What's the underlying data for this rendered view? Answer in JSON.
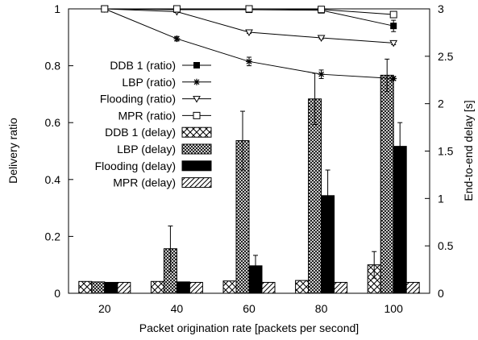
{
  "chart_data": {
    "type": "bar",
    "title": "",
    "xlabel": "Packet origination rate [packets per second]",
    "ylabel_left": "Delivery ratio",
    "ylabel_right": "End-to-end delay [s]",
    "categories": [
      "20",
      "40",
      "60",
      "80",
      "100"
    ],
    "ylim_left": [
      0,
      1
    ],
    "ylim_right": [
      0,
      3
    ],
    "yticks_left": [
      "0",
      "0.2",
      "0.4",
      "0.6",
      "0.8",
      "1"
    ],
    "yticks_right": [
      "0",
      "0.5",
      "1",
      "1.5",
      "2",
      "2.5",
      "3"
    ],
    "legend_position": "left",
    "ratio_series": [
      {
        "name": "DDB 1 (ratio)",
        "marker": "filled-square",
        "values": [
          1.0,
          0.997,
          0.997,
          0.995,
          0.94
        ],
        "errors": [
          0,
          0,
          0,
          0.004,
          0.02
        ]
      },
      {
        "name": "LBP (ratio)",
        "marker": "star",
        "values": [
          1.0,
          0.895,
          0.815,
          0.77,
          0.755
        ],
        "errors": [
          0,
          0.008,
          0.015,
          0.015,
          0.006
        ]
      },
      {
        "name": "Flooding (ratio)",
        "marker": "triangle-down",
        "values": [
          1.0,
          0.99,
          0.918,
          0.898,
          0.88
        ],
        "errors": [
          0,
          0,
          0.004,
          0.004,
          0.006
        ]
      },
      {
        "name": "MPR (ratio)",
        "marker": "open-square",
        "values": [
          1.0,
          1.0,
          1.0,
          0.998,
          0.98
        ],
        "errors": [
          0,
          0,
          0,
          0,
          0.008
        ]
      }
    ],
    "delay_series": [
      {
        "name": "DDB 1 (delay)",
        "pattern": "crosshatch",
        "values": [
          0.125,
          0.125,
          0.13,
          0.135,
          0.3
        ],
        "errors": [
          0,
          0,
          0,
          0,
          0.14
        ]
      },
      {
        "name": "LBP (delay)",
        "pattern": "dense-crosshatch",
        "values": [
          0.12,
          0.47,
          1.61,
          2.05,
          2.3
        ],
        "errors": [
          0,
          0.24,
          0.31,
          0.27,
          0.17
        ]
      },
      {
        "name": "Flooding (delay)",
        "pattern": "solid-black",
        "values": [
          0.115,
          0.12,
          0.29,
          1.03,
          1.55
        ],
        "errors": [
          0,
          0,
          0.11,
          0.27,
          0.25
        ]
      },
      {
        "name": "MPR (delay)",
        "pattern": "diagonal",
        "values": [
          0.115,
          0.115,
          0.115,
          0.115,
          0.115
        ],
        "errors": [
          0,
          0,
          0,
          0,
          0
        ]
      }
    ]
  }
}
